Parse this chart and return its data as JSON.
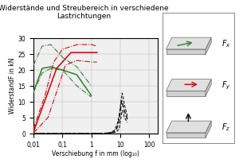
{
  "title": "Widerstände und Streubereich in verschiedene\nLastrichtungen",
  "xlabel": "Verschiebung f in mm (log₁₀)",
  "ylabel": "WiderstandF in kN",
  "ylim": [
    0,
    30
  ],
  "yticks": [
    0,
    5,
    10,
    15,
    20,
    25,
    30
  ],
  "xtick_labels": [
    "0,01",
    "0,1",
    "1",
    "10",
    "100"
  ],
  "xtick_vals": [
    0.01,
    0.1,
    1,
    10,
    100
  ],
  "bg_color": "#f0f0f0",
  "green_color": "#2e7d32",
  "red_color": "#cc0000",
  "black_color": "#111111",
  "green_main_x": [
    -2.0,
    -1.7,
    -1.4,
    -1.0,
    -0.5,
    0.0
  ],
  "green_main_y": [
    13.0,
    20.5,
    21.0,
    20.0,
    18.5,
    12.0
  ],
  "green_upper_x": [
    -2.0,
    -1.7,
    -1.4,
    -1.0,
    -0.5,
    0.0
  ],
  "green_upper_y": [
    21.5,
    27.5,
    28.0,
    24.0,
    21.0,
    15.0
  ],
  "green_lower_x": [
    -2.0,
    -1.7,
    -1.4,
    -1.0,
    -0.5,
    0.0
  ],
  "green_lower_y": [
    13.0,
    19.0,
    20.5,
    20.0,
    15.0,
    11.5
  ],
  "red_main_x": [
    -2.0,
    -1.5,
    -1.2,
    -0.7,
    0.0,
    0.2
  ],
  "red_main_y": [
    0.5,
    13.0,
    20.5,
    25.5,
    25.5,
    25.5
  ],
  "red_upper_x": [
    -2.0,
    -1.6,
    -1.3,
    -1.0,
    -0.5,
    0.0,
    0.2
  ],
  "red_upper_y": [
    1.5,
    12.0,
    22.5,
    26.5,
    28.0,
    28.0,
    27.5
  ],
  "red_lower_x": [
    -2.0,
    -1.5,
    -1.2,
    -0.9,
    -0.5,
    0.0,
    0.2
  ],
  "red_lower_y": [
    0.2,
    5.0,
    13.0,
    21.5,
    23.0,
    22.5,
    22.5
  ],
  "black_main_x": [
    -2.0,
    0.4,
    0.65,
    0.78,
    0.88,
    0.95,
    1.0,
    1.05,
    1.15,
    1.25
  ],
  "black_main_y": [
    0.0,
    0.0,
    0.2,
    0.5,
    1.5,
    3.5,
    6.5,
    10.5,
    7.0,
    4.5
  ],
  "black_upper_x": [
    -2.0,
    0.4,
    0.65,
    0.8,
    0.9,
    0.97,
    1.02,
    1.07,
    1.15,
    1.25
  ],
  "black_upper_y": [
    0.0,
    0.0,
    0.3,
    1.0,
    3.0,
    6.0,
    9.5,
    13.0,
    9.0,
    5.5
  ],
  "black_lower_x": [
    -2.0,
    0.4,
    0.65,
    0.8,
    0.9,
    0.97,
    1.02,
    1.07,
    1.15,
    1.25
  ],
  "black_lower_y": [
    0.0,
    0.0,
    0.1,
    0.3,
    0.8,
    1.5,
    4.5,
    7.5,
    5.0,
    3.5
  ]
}
